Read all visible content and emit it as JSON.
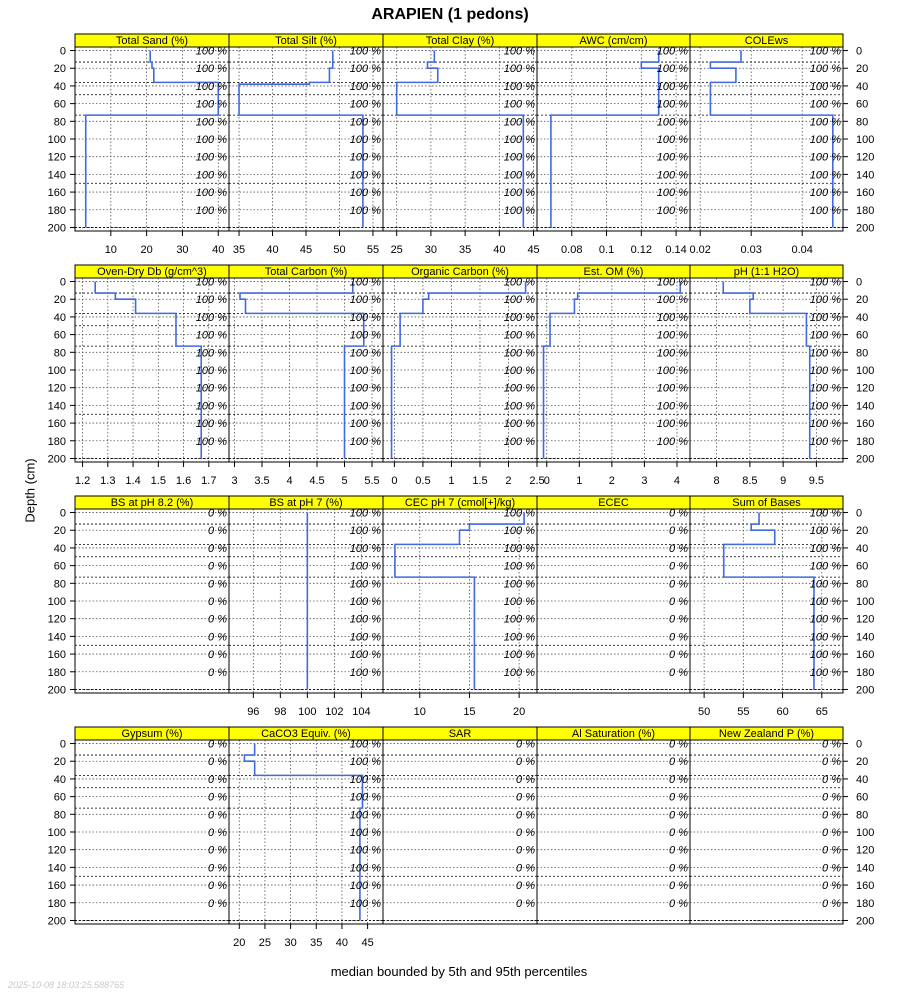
{
  "title": "ARAPIEN (1 pedons)",
  "ylabel": "Depth (cm)",
  "xlabel": "median bounded by 5th and 95th percentiles",
  "timestamp": "2025-10-08 18:03:25.588765",
  "colors": {
    "strip": "#ffff00",
    "line": "#4169e1",
    "grid": "#555555"
  },
  "chart_data": {
    "type": "line",
    "depth_axis": {
      "ticks": [
        0,
        20,
        40,
        60,
        80,
        100,
        120,
        140,
        160,
        180,
        200
      ],
      "ylim": [
        204,
        -4
      ],
      "inverted": true
    },
    "depth_ref_lines": [
      13,
      36,
      50,
      73,
      150,
      200
    ],
    "pct_depths": [
      0,
      20,
      40,
      60,
      80,
      100,
      120,
      140,
      160,
      180
    ],
    "panels": [
      {
        "row": 0,
        "col": 0,
        "title": "Total Sand (%)",
        "xlim": [
          0,
          43
        ],
        "xticks": [
          10,
          20,
          30,
          40
        ],
        "show_xticks": "bottom",
        "pct": "100 %",
        "segments": [
          [
            0,
            21
          ],
          [
            13,
            21.5
          ],
          [
            20,
            22
          ],
          [
            36,
            40
          ],
          [
            73,
            3
          ],
          [
            200,
            3
          ]
        ]
      },
      {
        "row": 0,
        "col": 1,
        "title": "Total Silt (%)",
        "xlim": [
          33.5,
          56.5
        ],
        "xticks": [
          35,
          40,
          45,
          50,
          55
        ],
        "show_xticks": "bottom",
        "pct": "100 %",
        "segments": [
          [
            0,
            49
          ],
          [
            20,
            48.5
          ],
          [
            36,
            45.5
          ],
          [
            38,
            35
          ],
          [
            73,
            53.5
          ],
          [
            200,
            53.5
          ]
        ]
      },
      {
        "row": 0,
        "col": 2,
        "title": "Total Clay (%)",
        "xlim": [
          23,
          45.5
        ],
        "xticks": [
          25,
          30,
          35,
          40,
          45
        ],
        "show_xticks": "bottom",
        "pct": "100 %",
        "segments": [
          [
            0,
            30.5
          ],
          [
            13,
            29.5
          ],
          [
            20,
            31
          ],
          [
            36,
            25
          ],
          [
            73,
            43.5
          ],
          [
            200,
            43.5
          ]
        ]
      },
      {
        "row": 0,
        "col": 3,
        "title": "AWC (cm/cm)",
        "xlim": [
          0.06,
          0.148
        ],
        "xticks": [
          0.08,
          0.1,
          0.12,
          0.14
        ],
        "show_xticks": "bottom",
        "pct": "100 %",
        "segments": [
          [
            0,
            0.13
          ],
          [
            13,
            0.12
          ],
          [
            20,
            0.13
          ],
          [
            36,
            0.13
          ],
          [
            73,
            0.068
          ],
          [
            200,
            0.068
          ]
        ]
      },
      {
        "row": 0,
        "col": 4,
        "title": "COLEws",
        "xlim": [
          0.018,
          0.048
        ],
        "xticks": [
          0.02,
          0.03,
          0.04
        ],
        "show_xticks": "bottom",
        "pct": "100 %",
        "segments": [
          [
            0,
            0.028
          ],
          [
            13,
            0.022
          ],
          [
            20,
            0.027
          ],
          [
            36,
            0.022
          ],
          [
            73,
            0.046
          ],
          [
            200,
            0.046
          ]
        ]
      },
      {
        "row": 1,
        "col": 0,
        "title": "Oven-Dry Db (g/cm^3)",
        "xlim": [
          1.17,
          1.78
        ],
        "xticks": [
          1.2,
          1.3,
          1.4,
          1.5,
          1.6,
          1.7
        ],
        "show_xticks": "bottom",
        "pct": "100 %",
        "segments": [
          [
            0,
            1.25
          ],
          [
            13,
            1.33
          ],
          [
            20,
            1.41
          ],
          [
            36,
            1.57
          ],
          [
            73,
            1.67
          ],
          [
            200,
            1.67
          ]
        ]
      },
      {
        "row": 1,
        "col": 1,
        "title": "Total Carbon (%)",
        "xlim": [
          2.9,
          5.7
        ],
        "xticks": [
          3.0,
          3.5,
          4.0,
          4.5,
          5.0,
          5.5
        ],
        "show_xticks": "bottom",
        "pct": "100 %",
        "segments": [
          [
            0,
            5.15
          ],
          [
            13,
            3.1
          ],
          [
            20,
            3.2
          ],
          [
            36,
            5.35
          ],
          [
            73,
            5.0
          ],
          [
            200,
            5.0
          ]
        ]
      },
      {
        "row": 1,
        "col": 2,
        "title": "Organic Carbon (%)",
        "xlim": [
          -0.2,
          2.5
        ],
        "xticks": [
          0.0,
          0.5,
          1.0,
          1.5,
          2.0,
          2.5
        ],
        "show_xticks": "bottom",
        "pct": "100 %",
        "segments": [
          [
            0,
            2.3
          ],
          [
            13,
            0.6
          ],
          [
            20,
            0.5
          ],
          [
            36,
            0.1
          ],
          [
            73,
            -0.05
          ],
          [
            200,
            -0.05
          ]
        ]
      },
      {
        "row": 1,
        "col": 3,
        "title": "Est. OM (%)",
        "xlim": [
          -0.3,
          4.4
        ],
        "xticks": [
          0,
          1,
          2,
          3,
          4
        ],
        "show_xticks": "bottom",
        "pct": "100 %",
        "segments": [
          [
            0,
            4.1
          ],
          [
            13,
            0.95
          ],
          [
            20,
            0.85
          ],
          [
            36,
            0.1
          ],
          [
            73,
            -0.1
          ],
          [
            200,
            -0.1
          ]
        ]
      },
      {
        "row": 1,
        "col": 4,
        "title": "pH (1:1 H2O)",
        "xlim": [
          7.6,
          9.9
        ],
        "xticks": [
          8.0,
          8.5,
          9.0,
          9.5
        ],
        "show_xticks": "bottom",
        "pct": "100 %",
        "segments": [
          [
            0,
            8.1
          ],
          [
            13,
            8.55
          ],
          [
            20,
            8.5
          ],
          [
            36,
            9.35
          ],
          [
            73,
            9.4
          ],
          [
            200,
            9.4
          ]
        ]
      },
      {
        "row": 2,
        "col": 0,
        "title": "BS at pH 8.2 (%)",
        "xlim": [
          0,
          1
        ],
        "xticks": [],
        "show_xticks": "none",
        "pct": "0 %",
        "segments": []
      },
      {
        "row": 2,
        "col": 1,
        "title": "BS at pH 7 (%)",
        "xlim": [
          94.2,
          105.6
        ],
        "xticks": [
          96,
          98,
          100,
          102,
          104
        ],
        "show_xticks": "bottom",
        "pct": "100 %",
        "segments": [
          [
            0,
            100
          ],
          [
            200,
            100
          ]
        ]
      },
      {
        "row": 2,
        "col": 2,
        "title": "CEC pH 7 (cmol[+]/kg)",
        "xlim": [
          6.3,
          21.8
        ],
        "xticks": [
          10,
          15,
          20
        ],
        "show_xticks": "bottom",
        "pct": "100 %",
        "segments": [
          [
            0,
            20.5
          ],
          [
            13,
            15
          ],
          [
            20,
            14
          ],
          [
            36,
            7.5
          ],
          [
            73,
            15.5
          ],
          [
            200,
            15.5
          ]
        ]
      },
      {
        "row": 2,
        "col": 3,
        "title": "ECEC",
        "xlim": [
          0,
          1
        ],
        "xticks": [],
        "show_xticks": "none",
        "pct": "0 %",
        "segments": []
      },
      {
        "row": 2,
        "col": 4,
        "title": "Sum of Bases",
        "xlim": [
          48.2,
          67.7
        ],
        "xticks": [
          50,
          55,
          60,
          65
        ],
        "show_xticks": "bottom",
        "pct": "100 %",
        "segments": [
          [
            0,
            57
          ],
          [
            13,
            56
          ],
          [
            20,
            59
          ],
          [
            36,
            52.5
          ],
          [
            73,
            64
          ],
          [
            200,
            64
          ]
        ]
      },
      {
        "row": 3,
        "col": 0,
        "title": "Gypsum (%)",
        "xlim": [
          0,
          1
        ],
        "xticks": [],
        "show_xticks": "none",
        "pct": "0 %",
        "segments": []
      },
      {
        "row": 3,
        "col": 1,
        "title": "CaCO3 Equiv. (%)",
        "xlim": [
          18,
          48
        ],
        "xticks": [
          20,
          25,
          30,
          35,
          40,
          45
        ],
        "show_xticks": "bottom",
        "pct": "100 %",
        "segments": [
          [
            0,
            23
          ],
          [
            13,
            21
          ],
          [
            20,
            23
          ],
          [
            36,
            44
          ],
          [
            73,
            43.5
          ],
          [
            200,
            43.5
          ]
        ]
      },
      {
        "row": 3,
        "col": 2,
        "title": "SAR",
        "xlim": [
          0,
          1
        ],
        "xticks": [],
        "show_xticks": "none",
        "pct": "0 %",
        "segments": []
      },
      {
        "row": 3,
        "col": 3,
        "title": "Al Saturation (%)",
        "xlim": [
          0,
          1
        ],
        "xticks": [],
        "show_xticks": "none",
        "pct": "0 %",
        "segments": []
      },
      {
        "row": 3,
        "col": 4,
        "title": "New Zealand P (%)",
        "xlim": [
          0,
          1
        ],
        "xticks": [],
        "show_xticks": "none",
        "pct": "0 %",
        "segments": []
      }
    ]
  }
}
